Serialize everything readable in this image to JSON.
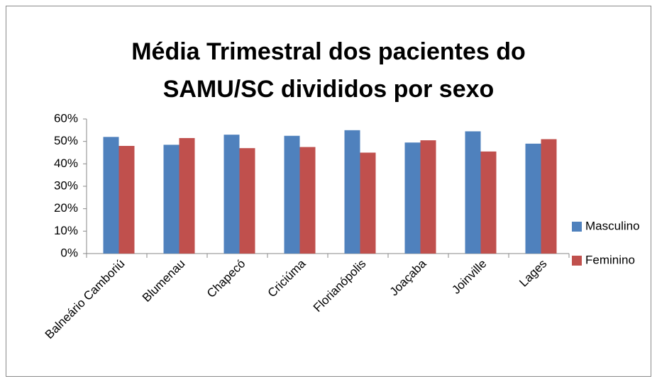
{
  "chart_data": {
    "type": "bar",
    "title": [
      "Média Trimestral dos pacientes do",
      "SAMU/SC  divididos por sexo"
    ],
    "categories": [
      "Balneário Camboriú",
      "Blumenau",
      "Chapecó",
      "Criciúma",
      "Florianópolis",
      "Joaçaba",
      "Joinville",
      "Lages"
    ],
    "series": [
      {
        "name": "Masculino",
        "color": "#4f81bd",
        "values": [
          52,
          48.5,
          53,
          52.5,
          55,
          49.5,
          54.5,
          49
        ]
      },
      {
        "name": "Feminino",
        "color": "#c0504d",
        "values": [
          48,
          51.5,
          47,
          47.5,
          45,
          50.5,
          45.5,
          51
        ]
      }
    ],
    "ylim": [
      0,
      60
    ],
    "yticks": [
      {
        "value": 0,
        "label": "0%"
      },
      {
        "value": 10,
        "label": "10%"
      },
      {
        "value": 20,
        "label": "20%"
      },
      {
        "value": 30,
        "label": "30%"
      },
      {
        "value": 40,
        "label": "40%"
      },
      {
        "value": 50,
        "label": "50%"
      },
      {
        "value": 60,
        "label": "60%"
      }
    ],
    "legend": "right"
  }
}
